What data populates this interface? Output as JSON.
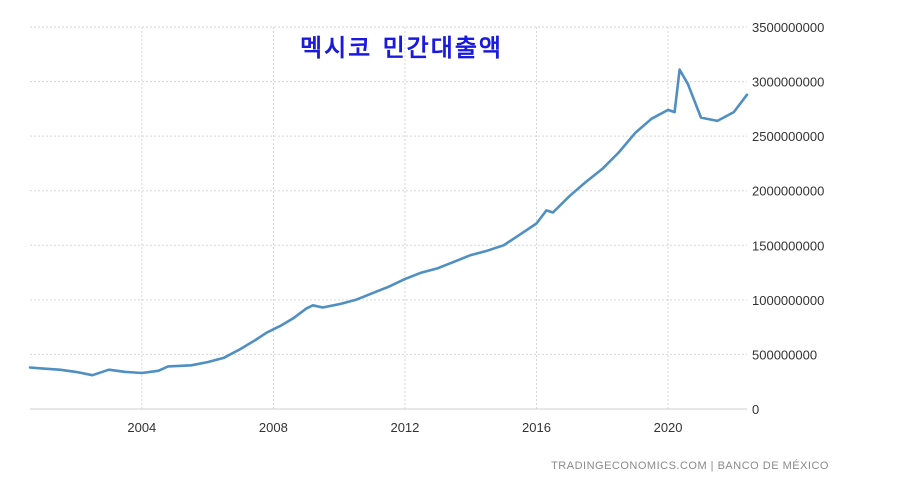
{
  "chart_data": {
    "type": "line",
    "title": "멕시코 민간대출액",
    "source": "TRADINGECONOMICS.COM  |  BANCO DE MÉXICO",
    "xlabel": "",
    "ylabel": "",
    "xlim": [
      2000.6,
      2022.4
    ],
    "ylim": [
      0,
      3500000000
    ],
    "x_ticks": [
      2004,
      2008,
      2012,
      2016,
      2020
    ],
    "x_tick_labels": [
      "2004",
      "2008",
      "2012",
      "2016",
      "2020"
    ],
    "y_ticks": [
      0,
      500000000,
      1000000000,
      1500000000,
      2000000000,
      2500000000,
      3000000000,
      3500000000
    ],
    "y_tick_labels": [
      "0",
      "500000000",
      "1000000000",
      "1500000000",
      "2000000000",
      "2500000000",
      "3000000000",
      "3500000000"
    ],
    "grid": true,
    "legend": "none",
    "series": [
      {
        "color": "#4f8fc2",
        "x": [
          2000.6,
          2001.0,
          2001.5,
          2002.0,
          2002.5,
          2003.0,
          2003.5,
          2004.0,
          2004.5,
          2004.8,
          2005.5,
          2006.0,
          2006.5,
          2007.0,
          2007.5,
          2007.8,
          2008.2,
          2008.6,
          2009.0,
          2009.2,
          2009.5,
          2010.0,
          2010.5,
          2011.0,
          2011.5,
          2012.0,
          2012.5,
          2013.0,
          2013.5,
          2014.0,
          2014.5,
          2015.0,
          2015.5,
          2016.0,
          2016.3,
          2016.5,
          2017.0,
          2017.5,
          2018.0,
          2018.5,
          2019.0,
          2019.5,
          2020.0,
          2020.2,
          2020.35,
          2020.6,
          2021.0,
          2021.5,
          2022.0,
          2022.4
        ],
        "y": [
          380000000,
          370000000,
          360000000,
          340000000,
          310000000,
          360000000,
          340000000,
          330000000,
          350000000,
          390000000,
          400000000,
          430000000,
          470000000,
          550000000,
          640000000,
          700000000,
          760000000,
          830000000,
          920000000,
          950000000,
          930000000,
          960000000,
          1000000000,
          1060000000,
          1120000000,
          1190000000,
          1250000000,
          1290000000,
          1350000000,
          1410000000,
          1450000000,
          1500000000,
          1600000000,
          1700000000,
          1820000000,
          1800000000,
          1950000000,
          2080000000,
          2200000000,
          2350000000,
          2530000000,
          2660000000,
          2740000000,
          2720000000,
          3110000000,
          2980000000,
          2670000000,
          2640000000,
          2720000000,
          2880000000
        ]
      }
    ]
  }
}
